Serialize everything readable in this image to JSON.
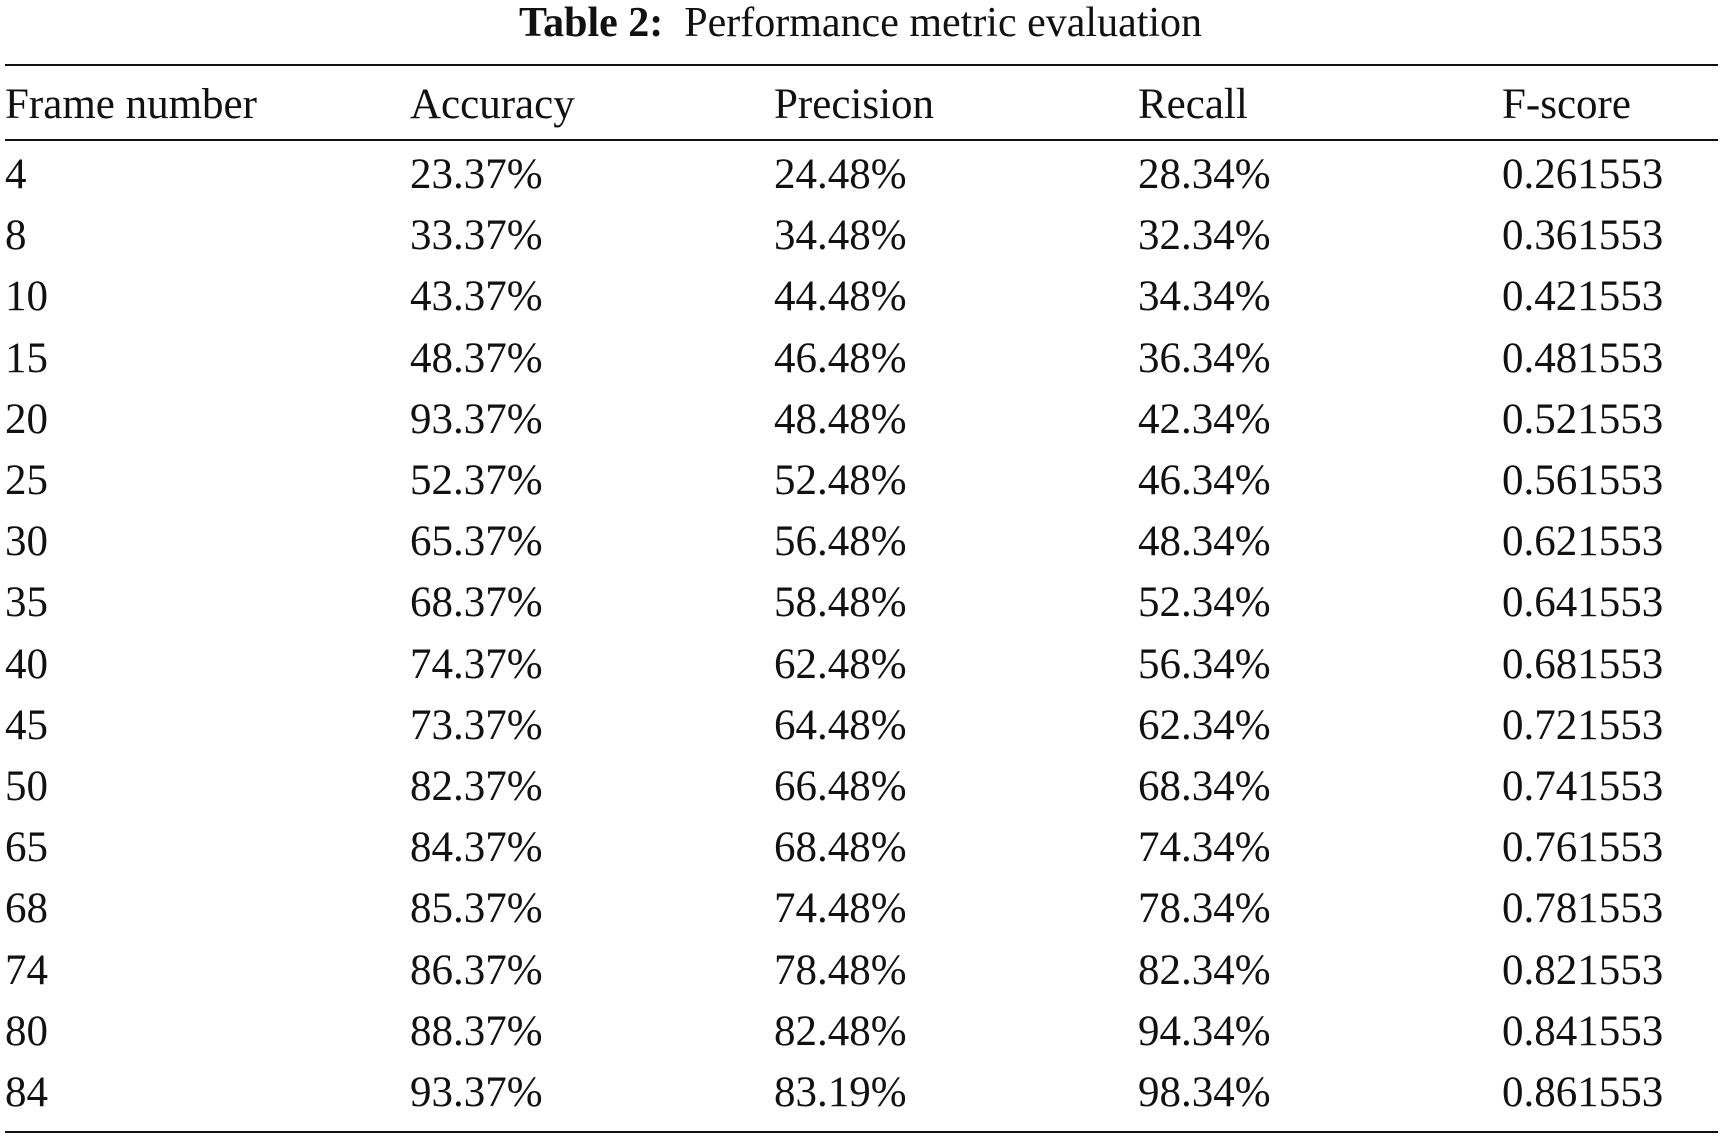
{
  "caption": {
    "label": "Table 2:",
    "text": "Performance metric evaluation"
  },
  "table": {
    "headers": [
      "Frame number",
      "Accuracy",
      "Precision",
      "Recall",
      "F-score"
    ],
    "rows": [
      [
        "4",
        "23.37%",
        "24.48%",
        "28.34%",
        "0.261553"
      ],
      [
        "8",
        "33.37%",
        "34.48%",
        "32.34%",
        "0.361553"
      ],
      [
        "10",
        "43.37%",
        "44.48%",
        "34.34%",
        "0.421553"
      ],
      [
        "15",
        "48.37%",
        "46.48%",
        "36.34%",
        "0.481553"
      ],
      [
        "20",
        "93.37%",
        "48.48%",
        "42.34%",
        "0.521553"
      ],
      [
        "25",
        "52.37%",
        "52.48%",
        "46.34%",
        "0.561553"
      ],
      [
        "30",
        "65.37%",
        "56.48%",
        "48.34%",
        "0.621553"
      ],
      [
        "35",
        "68.37%",
        "58.48%",
        "52.34%",
        "0.641553"
      ],
      [
        "40",
        "74.37%",
        "62.48%",
        "56.34%",
        "0.681553"
      ],
      [
        "45",
        "73.37%",
        "64.48%",
        "62.34%",
        "0.721553"
      ],
      [
        "50",
        "82.37%",
        "66.48%",
        "68.34%",
        "0.741553"
      ],
      [
        "65",
        "84.37%",
        "68.48%",
        "74.34%",
        "0.761553"
      ],
      [
        "68",
        "85.37%",
        "74.48%",
        "78.34%",
        "0.781553"
      ],
      [
        "74",
        "86.37%",
        "78.48%",
        "82.34%",
        "0.821553"
      ],
      [
        "80",
        "88.37%",
        "82.48%",
        "94.34%",
        "0.841553"
      ],
      [
        "84",
        "93.37%",
        "83.19%",
        "98.34%",
        "0.861553"
      ]
    ]
  }
}
